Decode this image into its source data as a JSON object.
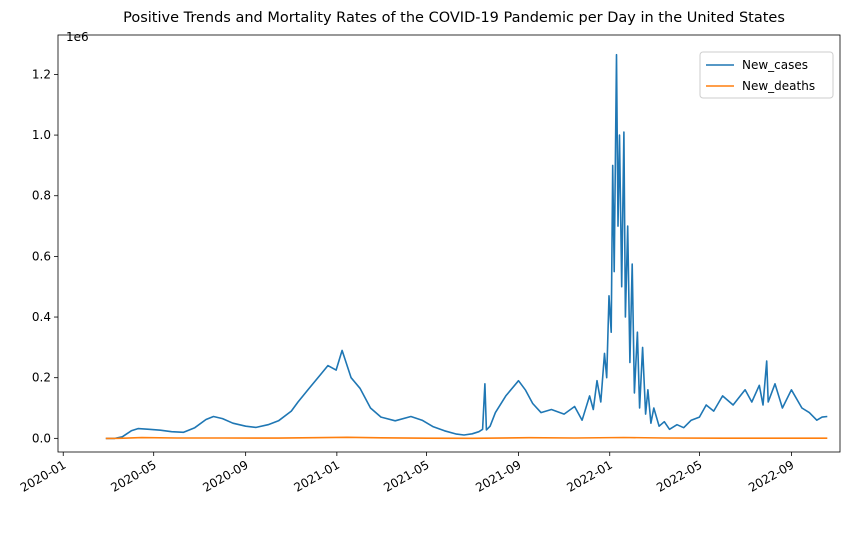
{
  "chart_data": {
    "type": "line",
    "title": " Positive Trends and Mortality Rates of the COVID-19 Pandemic per Day in the United States",
    "xlabel": "",
    "ylabel": "",
    "y_offset_label": "1e6",
    "x_ticks": [
      "2020-01",
      "2020-05",
      "2020-09",
      "2021-01",
      "2021-05",
      "2021-09",
      "2022-01",
      "2022-05",
      "2022-09"
    ],
    "x_tick_dates": [
      "2020-01-01",
      "2020-05-01",
      "2020-09-01",
      "2021-01-01",
      "2021-05-01",
      "2021-09-01",
      "2022-01-01",
      "2022-05-01",
      "2022-09-01"
    ],
    "y_ticks": [
      "0.0",
      "0.2",
      "0.4",
      "0.6",
      "0.8",
      "1.0",
      "1.2"
    ],
    "y_tick_values": [
      0,
      200000,
      400000,
      600000,
      800000,
      1000000,
      1200000
    ],
    "xlim": [
      "2019-12-25",
      "2022-11-05"
    ],
    "ylim": [
      -45000,
      1330000
    ],
    "grid": false,
    "legend_position": "top-right",
    "series": [
      {
        "name": "New_cases",
        "color": "#1f77b4",
        "x": [
          "2020-02-27",
          "2020-03-10",
          "2020-03-20",
          "2020-04-01",
          "2020-04-10",
          "2020-04-25",
          "2020-05-10",
          "2020-05-25",
          "2020-06-10",
          "2020-06-25",
          "2020-07-10",
          "2020-07-20",
          "2020-08-01",
          "2020-08-15",
          "2020-09-01",
          "2020-09-15",
          "2020-10-01",
          "2020-10-15",
          "2020-11-01",
          "2020-11-10",
          "2020-11-25",
          "2020-12-10",
          "2020-12-20",
          "2020-12-31",
          "2021-01-08",
          "2021-01-20",
          "2021-02-01",
          "2021-02-15",
          "2021-03-01",
          "2021-03-20",
          "2021-04-10",
          "2021-04-25",
          "2021-05-10",
          "2021-05-25",
          "2021-06-10",
          "2021-06-20",
          "2021-07-01",
          "2021-07-10",
          "2021-07-15",
          "2021-07-18",
          "2021-07-20",
          "2021-07-25",
          "2021-08-01",
          "2021-08-15",
          "2021-09-01",
          "2021-09-10",
          "2021-09-20",
          "2021-10-01",
          "2021-10-15",
          "2021-11-01",
          "2021-11-15",
          "2021-11-25",
          "2021-12-05",
          "2021-12-10",
          "2021-12-15",
          "2021-12-20",
          "2021-12-25",
          "2021-12-28",
          "2021-12-31",
          "2022-01-03",
          "2022-01-05",
          "2022-01-07",
          "2022-01-10",
          "2022-01-12",
          "2022-01-14",
          "2022-01-17",
          "2022-01-20",
          "2022-01-22",
          "2022-01-25",
          "2022-01-28",
          "2022-01-31",
          "2022-02-03",
          "2022-02-07",
          "2022-02-10",
          "2022-02-14",
          "2022-02-18",
          "2022-02-21",
          "2022-02-25",
          "2022-03-01",
          "2022-03-08",
          "2022-03-15",
          "2022-03-22",
          "2022-04-01",
          "2022-04-10",
          "2022-04-20",
          "2022-05-01",
          "2022-05-10",
          "2022-05-20",
          "2022-06-01",
          "2022-06-15",
          "2022-07-01",
          "2022-07-10",
          "2022-07-20",
          "2022-07-25",
          "2022-07-30",
          "2022-08-01",
          "2022-08-10",
          "2022-08-20",
          "2022-09-01",
          "2022-09-15",
          "2022-09-25",
          "2022-10-05",
          "2022-10-12",
          "2022-10-19"
        ],
        "values": [
          0,
          0,
          5000,
          25000,
          32000,
          30000,
          27000,
          22000,
          20000,
          35000,
          62000,
          72000,
          65000,
          50000,
          40000,
          36000,
          45000,
          58000,
          90000,
          120000,
          165000,
          210000,
          240000,
          225000,
          290000,
          200000,
          165000,
          100000,
          70000,
          58000,
          72000,
          60000,
          38000,
          25000,
          14000,
          11000,
          15000,
          22000,
          30000,
          180000,
          28000,
          40000,
          85000,
          140000,
          190000,
          160000,
          115000,
          85000,
          95000,
          80000,
          105000,
          60000,
          140000,
          95000,
          190000,
          120000,
          280000,
          200000,
          470000,
          350000,
          900000,
          550000,
          1265000,
          700000,
          1000000,
          500000,
          1010000,
          400000,
          700000,
          250000,
          575000,
          150000,
          350000,
          100000,
          300000,
          80000,
          160000,
          50000,
          100000,
          40000,
          55000,
          30000,
          45000,
          35000,
          60000,
          70000,
          110000,
          90000,
          140000,
          110000,
          160000,
          120000,
          175000,
          110000,
          255000,
          120000,
          180000,
          100000,
          160000,
          100000,
          85000,
          60000,
          70000,
          72000
        ]
      },
      {
        "name": "New_deaths",
        "color": "#ff7f0e",
        "x": [
          "2020-02-27",
          "2020-03-15",
          "2020-04-15",
          "2020-06-01",
          "2020-08-01",
          "2020-10-15",
          "2020-12-01",
          "2021-01-15",
          "2021-03-01",
          "2021-05-01",
          "2021-07-01",
          "2021-09-15",
          "2021-11-15",
          "2022-01-20",
          "2022-03-15",
          "2022-06-01",
          "2022-08-15",
          "2022-10-19"
        ],
        "values": [
          0,
          100,
          2500,
          1000,
          1100,
          800,
          2300,
          3400,
          1800,
          650,
          300,
          2000,
          1200,
          2700,
          1000,
          350,
          450,
          400
        ]
      }
    ]
  }
}
